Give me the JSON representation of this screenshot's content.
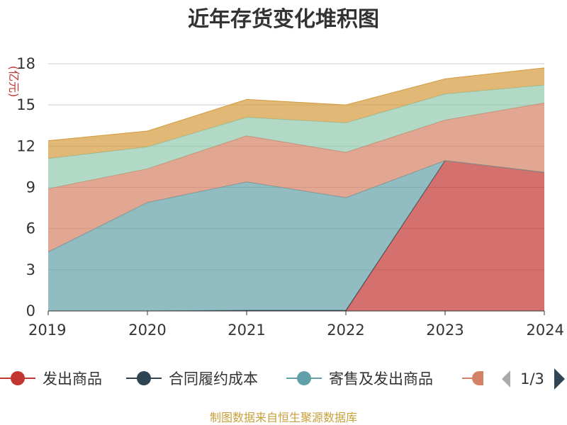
{
  "chart_data": {
    "type": "area",
    "stacked": true,
    "title": "近年存货变化堆积图",
    "ylabel": "(亿元)",
    "xlabel": "",
    "categories": [
      "2019",
      "2020",
      "2021",
      "2022",
      "2023",
      "2024"
    ],
    "ylim": [
      0,
      18
    ],
    "yticks": [
      0,
      3,
      6,
      9,
      12,
      15,
      18
    ],
    "grid": true,
    "series": [
      {
        "name": "发出商品",
        "color": "#c23531",
        "values": [
          0,
          0,
          0,
          0,
          10.95,
          10.1
        ]
      },
      {
        "name": "合同履约成本",
        "color": "#2f4554",
        "values": [
          0,
          0,
          0.05,
          0.05,
          0,
          0
        ]
      },
      {
        "name": "寄售及发出商品",
        "color": "#61a0a8",
        "values": [
          4.3,
          7.9,
          9.35,
          8.2,
          0,
          0
        ]
      },
      {
        "name": "",
        "color": "#d48265",
        "values": [
          4.6,
          2.45,
          3.35,
          3.3,
          2.95,
          5.05
        ]
      },
      {
        "name": "",
        "color": "#91c7ae",
        "values": [
          2.2,
          1.6,
          1.35,
          2.15,
          1.9,
          1.3
        ]
      },
      {
        "name": "",
        "color": "#d49a3c",
        "values": [
          1.3,
          1.15,
          1.3,
          1.3,
          1.1,
          1.25
        ]
      }
    ],
    "legend": {
      "position": "bottom",
      "visible_items": [
        "发出商品",
        "合同履约成本",
        "寄售及发出商品"
      ],
      "page": "1/3"
    }
  },
  "footer": {
    "source": "制图数据来自恒生聚源数据库"
  }
}
